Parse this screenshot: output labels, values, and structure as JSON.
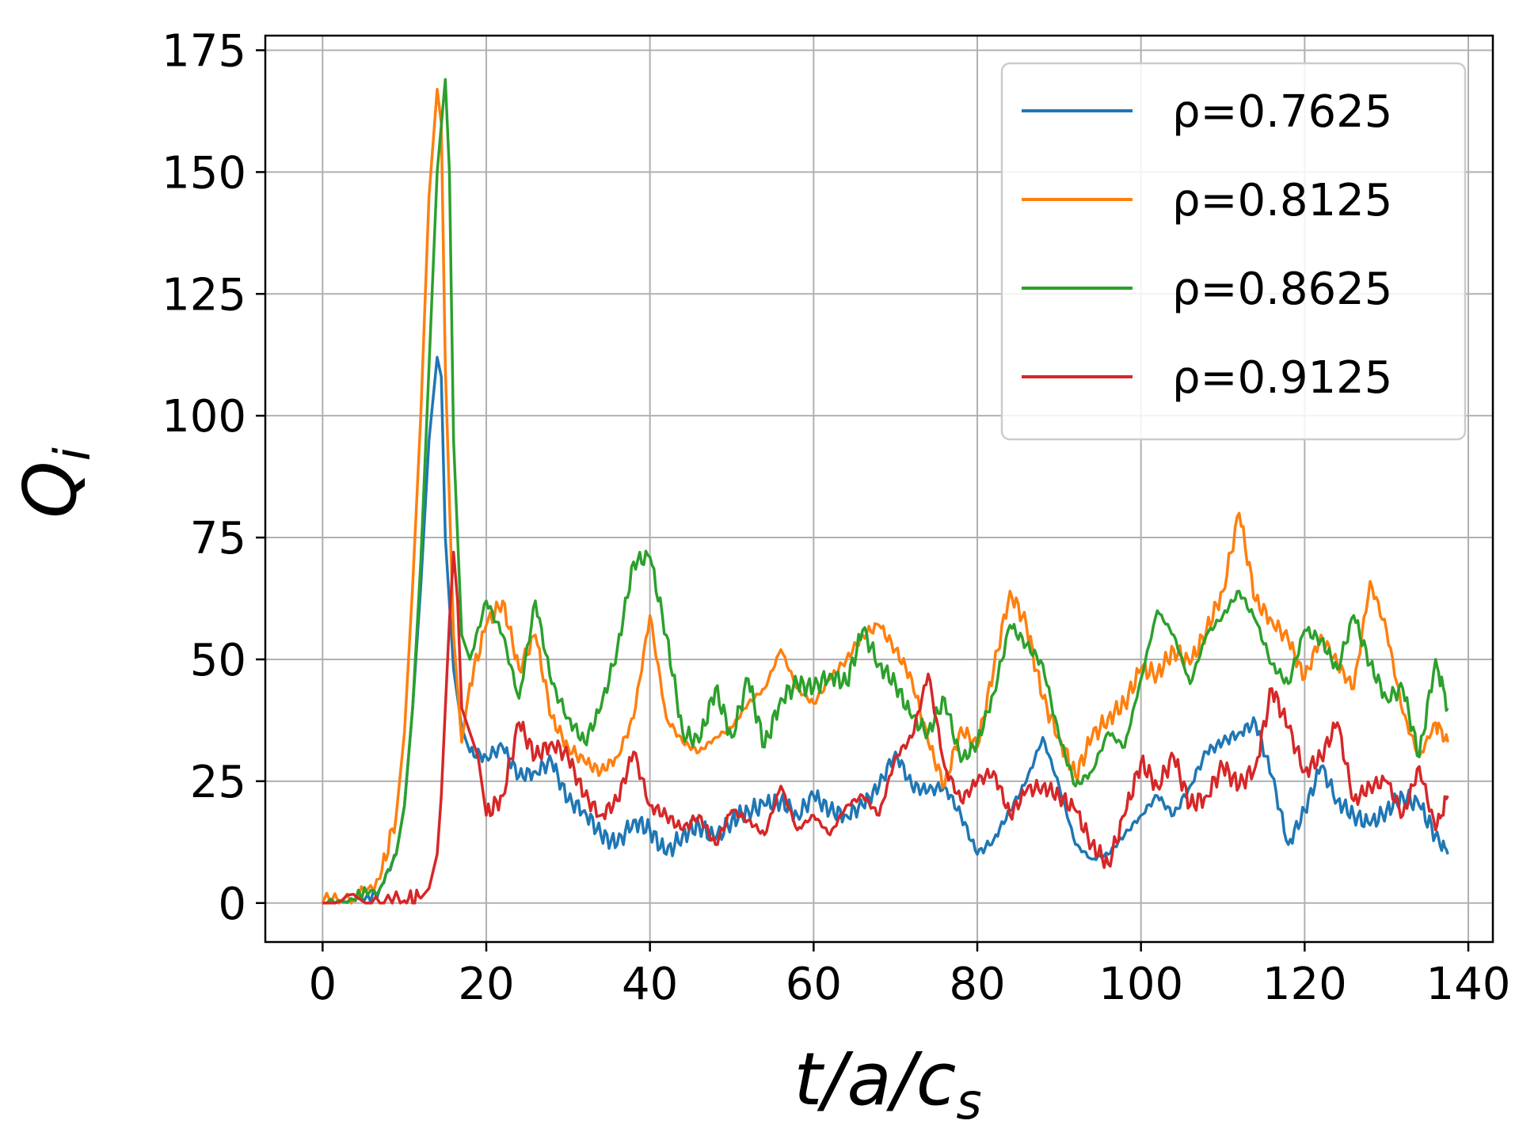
{
  "chart_data": {
    "type": "line",
    "xlabel_main": "t/a/c",
    "xlabel_sub": "s",
    "ylabel_main": "Q",
    "ylabel_sub": "i",
    "xlim": [
      -7,
      143
    ],
    "ylim": [
      -8,
      178
    ],
    "x_ticks": [
      {
        "value": 0,
        "label": "0"
      },
      {
        "value": 20,
        "label": "20"
      },
      {
        "value": 40,
        "label": "40"
      },
      {
        "value": 60,
        "label": "60"
      },
      {
        "value": 80,
        "label": "80"
      },
      {
        "value": 100,
        "label": "100"
      },
      {
        "value": 120,
        "label": "120"
      },
      {
        "value": 140,
        "label": "140"
      }
    ],
    "y_ticks": [
      {
        "value": 0,
        "label": "0"
      },
      {
        "value": 25,
        "label": "25"
      },
      {
        "value": 50,
        "label": "50"
      },
      {
        "value": 75,
        "label": "75"
      },
      {
        "value": 100,
        "label": "100"
      },
      {
        "value": 125,
        "label": "125"
      },
      {
        "value": 150,
        "label": "150"
      },
      {
        "value": 175,
        "label": "175"
      }
    ],
    "grid": true,
    "legend_position": "top-right",
    "series": [
      {
        "name": "ρ=0.7625",
        "color": "#1f77b4",
        "x": [
          0,
          4,
          7,
          9,
          10,
          11,
          12,
          13,
          14,
          14.5,
          15,
          16,
          17,
          18,
          20,
          22,
          24,
          26,
          28,
          30,
          32,
          34,
          36,
          38,
          40,
          42,
          44,
          46,
          48,
          50,
          52,
          54,
          56,
          58,
          60,
          62,
          64,
          66,
          68,
          70,
          72,
          74,
          76,
          78,
          80,
          82,
          84,
          86,
          88,
          90,
          92,
          94,
          96,
          98,
          100,
          102,
          104,
          106,
          108,
          110,
          112,
          114,
          116,
          118,
          120,
          122,
          124,
          126,
          128,
          130,
          132,
          134,
          136,
          137.5
        ],
        "y": [
          0,
          0.5,
          3,
          10,
          20,
          40,
          65,
          95,
          112,
          108,
          75,
          48,
          36,
          31,
          30,
          32,
          26,
          27,
          29,
          21,
          19,
          14,
          12,
          17,
          15,
          10,
          14,
          16,
          13,
          17,
          19,
          20,
          21,
          18,
          22,
          19,
          18,
          20,
          24,
          31,
          24,
          23,
          24,
          18,
          10,
          13,
          19,
          25,
          34,
          24,
          12,
          9,
          10,
          14,
          18,
          22,
          18,
          24,
          31,
          33,
          35,
          37,
          26,
          12,
          19,
          28,
          21,
          18,
          16,
          19,
          22,
          20,
          14,
          10
        ]
      },
      {
        "name": "ρ=0.8125",
        "color": "#ff7f0e",
        "x": [
          0,
          4,
          7,
          9,
          10,
          11,
          12,
          13,
          14,
          14.5,
          15,
          16,
          17,
          18,
          20,
          22,
          24,
          26,
          28,
          30,
          32,
          34,
          36,
          38,
          40,
          42,
          44,
          46,
          48,
          50,
          52,
          54,
          56,
          58,
          60,
          62,
          64,
          66,
          68,
          70,
          72,
          74,
          76,
          78,
          80,
          82,
          84,
          86,
          88,
          90,
          92,
          94,
          96,
          98,
          100,
          102,
          104,
          106,
          108,
          110,
          112,
          114,
          116,
          118,
          120,
          122,
          124,
          126,
          128,
          130,
          132,
          134,
          136,
          137.5
        ],
        "y": [
          0,
          1,
          5,
          18,
          35,
          65,
          100,
          145,
          167,
          160,
          110,
          55,
          33,
          45,
          57,
          62,
          48,
          55,
          38,
          32,
          29,
          27,
          30,
          38,
          59,
          38,
          33,
          31,
          34,
          36,
          41,
          44,
          52,
          44,
          41,
          46,
          50,
          55,
          57,
          52,
          46,
          33,
          24,
          36,
          32,
          48,
          64,
          57,
          42,
          34,
          26,
          34,
          38,
          41,
          48,
          47,
          52,
          49,
          56,
          64,
          80,
          62,
          58,
          54,
          46,
          55,
          49,
          44,
          66,
          56,
          39,
          30,
          37,
          33
        ]
      },
      {
        "name": "ρ=0.8625",
        "color": "#2ca02c",
        "x": [
          0,
          4,
          7,
          9,
          10,
          11,
          12,
          13,
          14,
          15,
          15.5,
          16,
          17,
          18,
          20,
          22,
          24,
          26,
          28,
          30,
          32,
          34,
          36,
          38,
          40,
          42,
          44,
          46,
          48,
          50,
          52,
          54,
          56,
          58,
          60,
          62,
          64,
          66,
          68,
          70,
          72,
          74,
          76,
          78,
          80,
          82,
          84,
          86,
          88,
          90,
          92,
          94,
          96,
          98,
          100,
          102,
          104,
          106,
          108,
          110,
          112,
          114,
          116,
          118,
          120,
          122,
          124,
          126,
          128,
          130,
          132,
          134,
          136,
          137.5
        ],
        "y": [
          0,
          0.5,
          3,
          10,
          20,
          40,
          70,
          110,
          150,
          169,
          150,
          95,
          55,
          50,
          62,
          55,
          42,
          62,
          45,
          38,
          33,
          40,
          52,
          70,
          71,
          55,
          35,
          33,
          44,
          34,
          46,
          32,
          42,
          45,
          44,
          47,
          45,
          56,
          49,
          45,
          38,
          35,
          42,
          29,
          33,
          43,
          57,
          53,
          49,
          34,
          24,
          27,
          35,
          32,
          46,
          60,
          55,
          45,
          55,
          59,
          64,
          58,
          49,
          45,
          56,
          54,
          48,
          59,
          49,
          42,
          44,
          30,
          50,
          40
        ]
      },
      {
        "name": "ρ=0.9125",
        "color": "#d62728",
        "x": [
          0,
          6,
          10,
          12,
          13,
          14,
          14.5,
          15,
          15.5,
          16,
          16.5,
          17,
          18,
          19,
          20,
          22,
          24,
          26,
          28,
          30,
          32,
          34,
          36,
          38,
          40,
          42,
          44,
          46,
          48,
          50,
          52,
          54,
          56,
          58,
          60,
          62,
          64,
          66,
          68,
          70,
          72,
          74,
          76,
          78,
          80,
          82,
          84,
          86,
          88,
          90,
          92,
          94,
          96,
          98,
          100,
          102,
          104,
          106,
          108,
          110,
          112,
          114,
          116,
          118,
          120,
          122,
          124,
          126,
          128,
          130,
          132,
          134,
          136,
          137.5
        ],
        "y": [
          0,
          0,
          0.5,
          1,
          3,
          10,
          22,
          40,
          58,
          72,
          62,
          40,
          35,
          30,
          18,
          22,
          37,
          30,
          33,
          30,
          22,
          18,
          21,
          31,
          20,
          18,
          15,
          18,
          12,
          19,
          17,
          14,
          24,
          15,
          18,
          14,
          20,
          22,
          18,
          30,
          34,
          47,
          28,
          21,
          25,
          27,
          18,
          23,
          24,
          22,
          19,
          12,
          8,
          18,
          29,
          24,
          30,
          20,
          22,
          28,
          24,
          28,
          44,
          36,
          27,
          30,
          37,
          21,
          24,
          25,
          18,
          28,
          15,
          22
        ]
      }
    ]
  }
}
